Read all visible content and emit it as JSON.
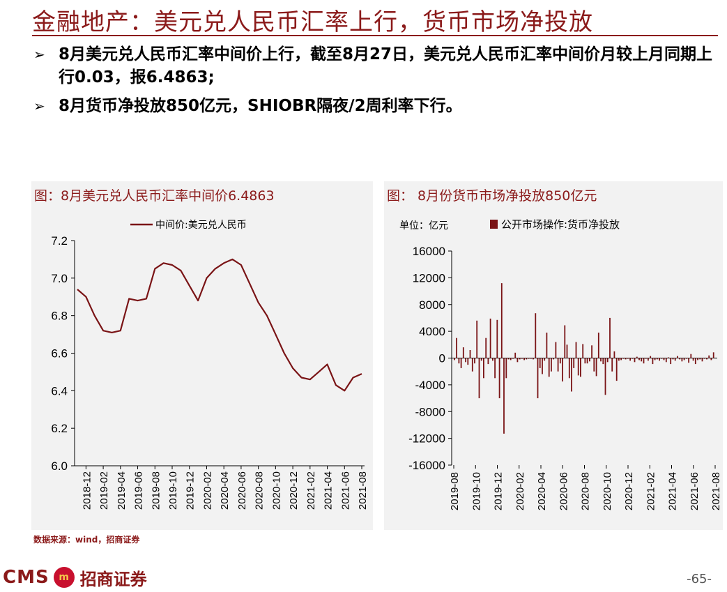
{
  "header": {
    "title": "金融地产：美元兑人民币汇率上行，货币市场净投放"
  },
  "bullets": [
    "8月美元兑人民币汇率中间价上行，截至8月27日，美元兑人民币汇率中间价月较上月同期上行0.03，报6.4863;",
    "8月货币净投放850亿元，SHIOBR隔夜/2周利率下行。"
  ],
  "bullet_symbol": "➢",
  "source": "数据来源：wind，招商证券",
  "footer": {
    "brand": "CMS",
    "brand_cn": "招商证券",
    "page": "-65-"
  },
  "colors": {
    "accent": "#8b1a1a",
    "series": "#7a1416"
  },
  "chart_data": [
    {
      "type": "line",
      "title": "图：8月美元兑人民币汇率中间价6.4863",
      "legend": "中间价:美元兑人民币",
      "legend_position": "top",
      "ylim": [
        6.0,
        7.2
      ],
      "yticks": [
        "6.0",
        "6.2",
        "6.4",
        "6.6",
        "6.8",
        "7.0",
        "7.2"
      ],
      "xticks": [
        "2018-12",
        "2019-02",
        "2019-04",
        "2019-06",
        "2019-08",
        "2019-10",
        "2019-12",
        "2020-02",
        "2020-04",
        "2020-06",
        "2020-08",
        "2020-10",
        "2020-12",
        "2021-02",
        "2021-04",
        "2021-06",
        "2021-08"
      ],
      "x": [
        "2018-11",
        "2018-12",
        "2019-01",
        "2019-02",
        "2019-03",
        "2019-04",
        "2019-05",
        "2019-06",
        "2019-07",
        "2019-08",
        "2019-09",
        "2019-10",
        "2019-11",
        "2019-12",
        "2020-01",
        "2020-02",
        "2020-03",
        "2020-04",
        "2020-05",
        "2020-06",
        "2020-07",
        "2020-08",
        "2020-09",
        "2020-10",
        "2020-11",
        "2020-12",
        "2021-01",
        "2021-02",
        "2021-03",
        "2021-04",
        "2021-05",
        "2021-06",
        "2021-07",
        "2021-08"
      ],
      "series": [
        {
          "values": [
            6.94,
            6.9,
            6.8,
            6.72,
            6.71,
            6.72,
            6.89,
            6.88,
            6.89,
            7.05,
            7.08,
            7.07,
            7.04,
            6.96,
            6.88,
            7.0,
            7.05,
            7.08,
            7.1,
            7.07,
            6.97,
            6.87,
            6.8,
            6.7,
            6.6,
            6.52,
            6.47,
            6.46,
            6.5,
            6.54,
            6.43,
            6.4,
            6.47,
            6.49
          ]
        }
      ]
    },
    {
      "type": "bar",
      "title": "图： 8月份货币市场净投放850亿元",
      "unit_label": "单位：亿元",
      "legend": "公开市场操作:货币净投放",
      "legend_position": "top",
      "ylim": [
        -16000,
        16000
      ],
      "yticks": [
        "-16000",
        "-12000",
        "-8000",
        "-4000",
        "0",
        "4000",
        "8000",
        "12000",
        "16000"
      ],
      "xticks": [
        "2019-08",
        "2019-10",
        "2019-12",
        "2020-02",
        "2020-04",
        "2020-06",
        "2020-08",
        "2020-10",
        "2020-12",
        "2021-02",
        "2021-04",
        "2021-06",
        "2021-08"
      ],
      "values": [
        -300,
        3000,
        -800,
        -1500,
        1600,
        -600,
        -1000,
        1200,
        -2000,
        -800,
        5600,
        -6000,
        -400,
        -3000,
        3000,
        -900,
        5900,
        -400,
        -3000,
        5700,
        -6000,
        11200,
        -11300,
        -3000,
        -200,
        -300,
        -100,
        800,
        -600,
        -200,
        -100,
        -300,
        -200,
        -100,
        -100,
        -200,
        6700,
        -6000,
        -1500,
        -2400,
        -400,
        3800,
        -2800,
        -2000,
        -200,
        2400,
        -2000,
        -800,
        -3500,
        4900,
        2000,
        -3000,
        -5000,
        -1500,
        2400,
        -2600,
        -2800,
        2100,
        -800,
        -800,
        -500,
        1900,
        -2000,
        -2700,
        3800,
        -500,
        -900,
        -5500,
        -600,
        6000,
        -2000,
        1000,
        -3400,
        -400,
        -300,
        -100,
        -200,
        -100,
        -400,
        -100,
        -600,
        200,
        -300,
        -500,
        -800,
        -100,
        -400,
        300,
        -900,
        -300,
        -200,
        -400,
        -100,
        -300,
        -600,
        100,
        -900,
        -200,
        -400,
        300,
        -200,
        -500,
        -300,
        -100,
        -700,
        600,
        -400,
        -900,
        -300,
        -200,
        -500,
        -100,
        -200,
        400,
        -300,
        850
      ]
    }
  ]
}
